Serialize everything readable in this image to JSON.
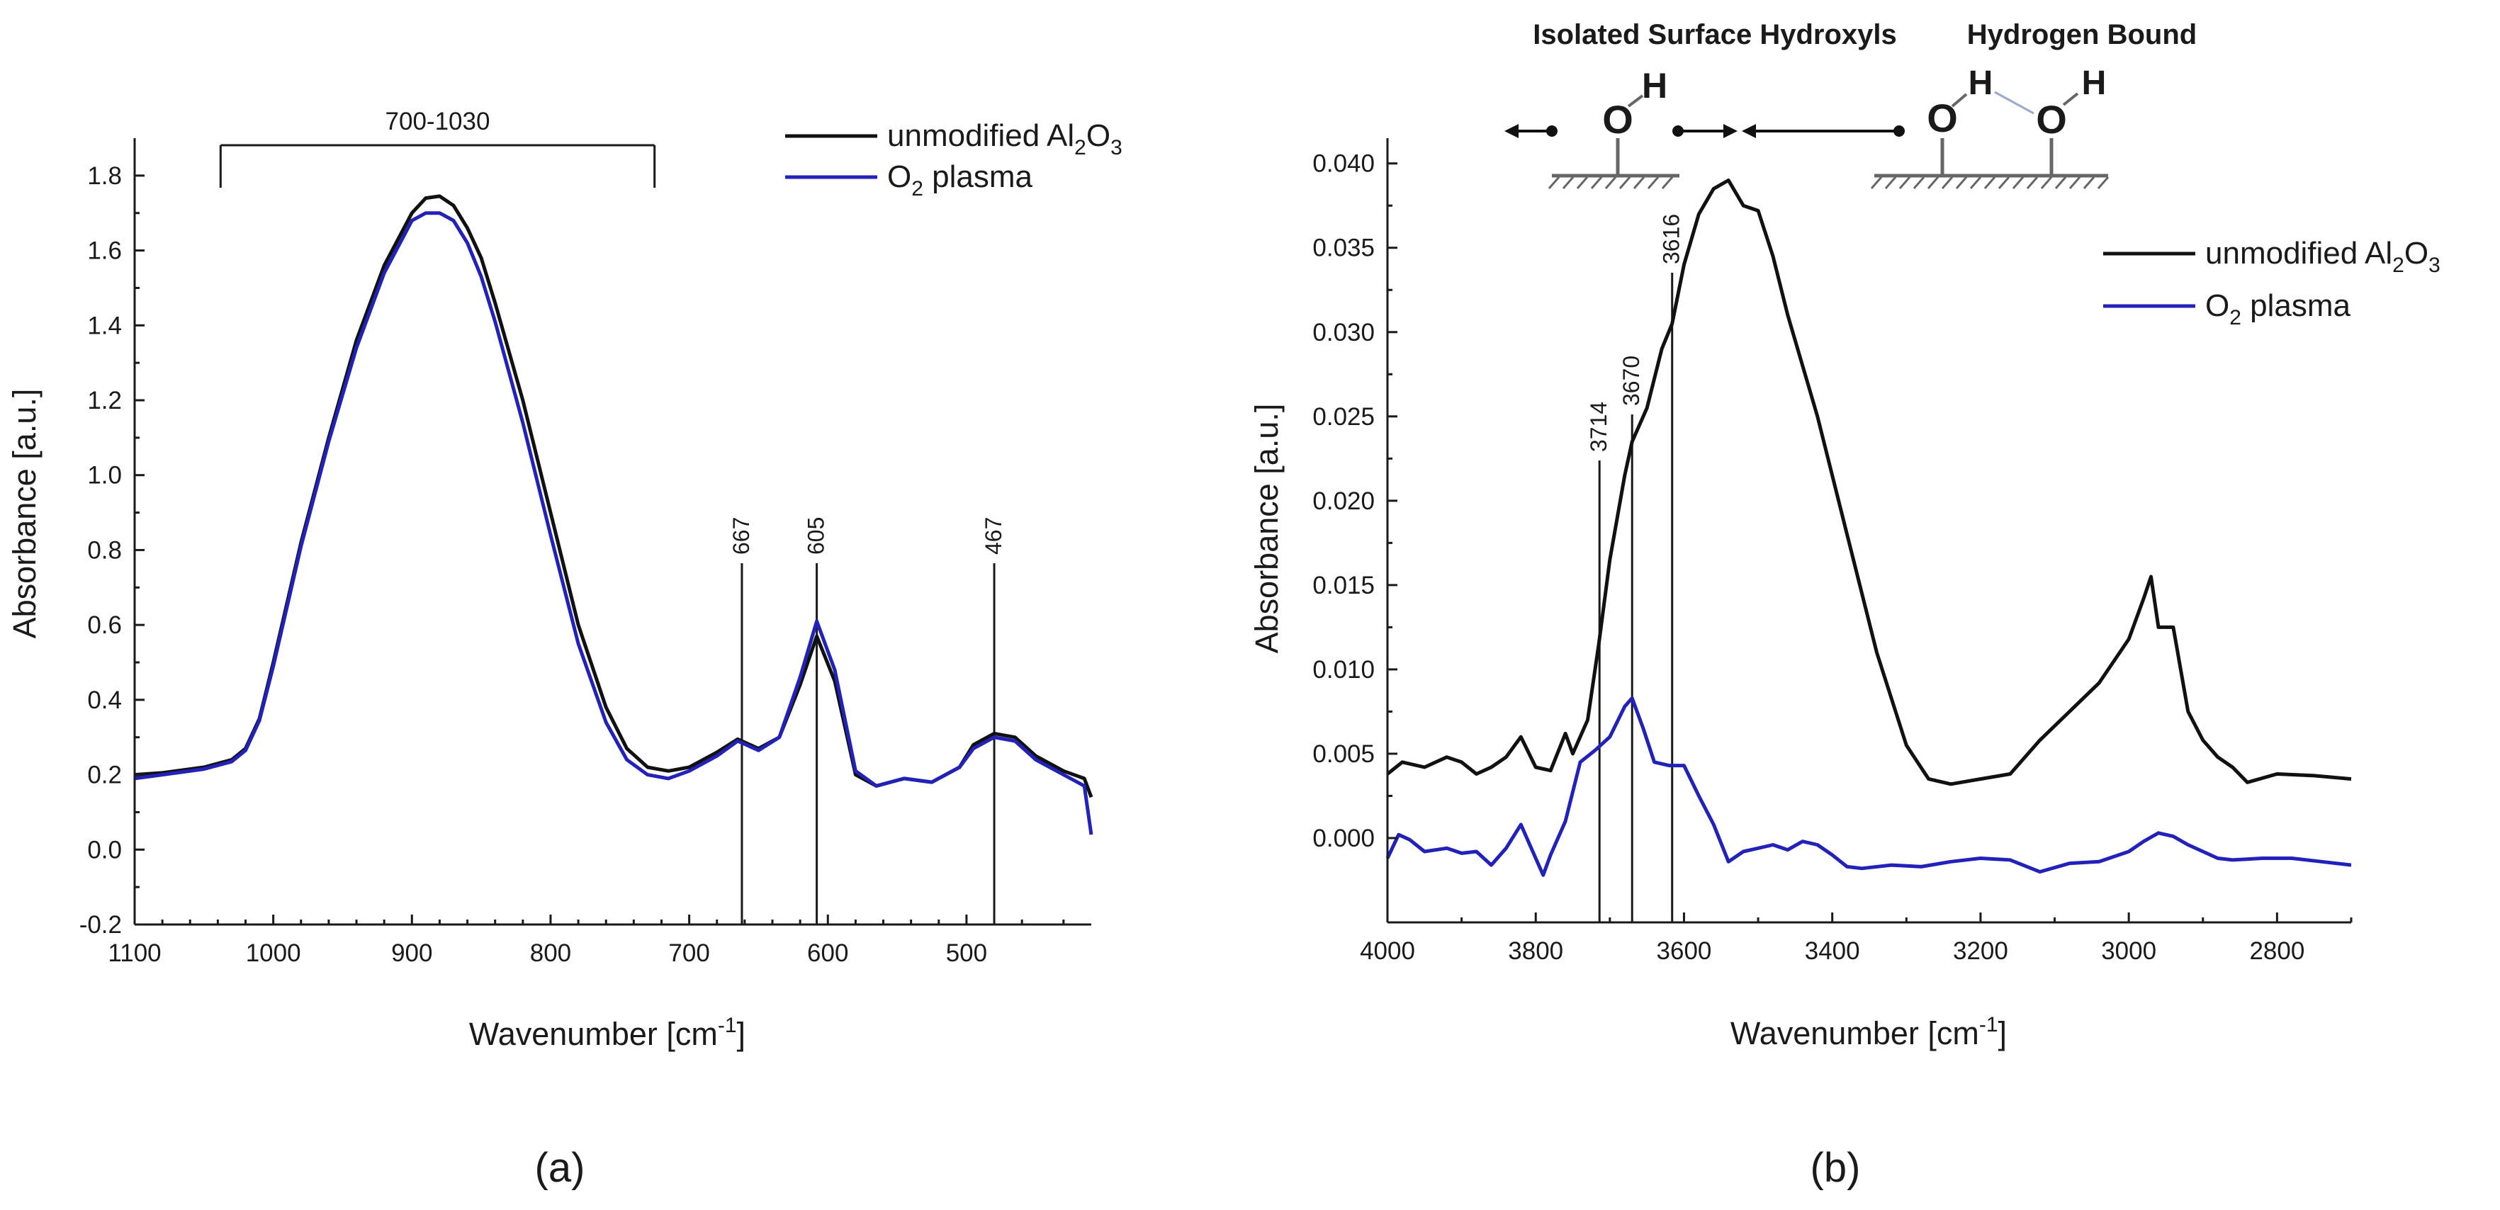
{
  "chart_data": [
    {
      "type": "line",
      "panel": "(a)",
      "xlabel": "Wavenumber [cm",
      "xlabel_sup": "-1",
      "xlabel_end": "]",
      "ylabel": "Absorbance [a.u.]",
      "xlim": [
        1100,
        410
      ],
      "ylim": [
        -0.2,
        1.9
      ],
      "x_ticks": [
        1100,
        1000,
        900,
        800,
        700,
        600,
        500
      ],
      "y_ticks": [
        -0.2,
        0.0,
        0.2,
        0.4,
        0.6,
        0.8,
        1.0,
        1.2,
        1.4,
        1.6,
        1.8
      ],
      "x_tick_labels": [
        "1100",
        "1000",
        "900",
        "800",
        "700",
        "600",
        "500"
      ],
      "y_tick_labels": [
        "-0.2",
        "0.0",
        "0.2",
        "0.4",
        "0.6",
        "0.8",
        "1.0",
        "1.2",
        "1.4",
        "1.6",
        "1.8"
      ],
      "bracket": {
        "label": "700-1030",
        "from": 1038,
        "to": 725
      },
      "peaks": [
        {
          "x": 662,
          "label": "667"
        },
        {
          "x": 608,
          "label": "605"
        },
        {
          "x": 480,
          "label": "467"
        }
      ],
      "series": [
        {
          "name": "unmodified Al",
          "legend_sub": "2",
          "legend_mid": "O",
          "legend_sub2": "3",
          "color": "#111111",
          "x": [
            1100,
            1080,
            1050,
            1030,
            1020,
            1010,
            1000,
            980,
            960,
            940,
            920,
            900,
            890,
            880,
            870,
            860,
            850,
            840,
            820,
            800,
            780,
            760,
            745,
            730,
            715,
            700,
            680,
            665,
            650,
            635,
            620,
            608,
            595,
            580,
            565,
            545,
            525,
            505,
            495,
            480,
            465,
            450,
            430,
            415,
            410
          ],
          "y": [
            0.2,
            0.205,
            0.22,
            0.24,
            0.27,
            0.35,
            0.5,
            0.82,
            1.1,
            1.36,
            1.56,
            1.7,
            1.74,
            1.745,
            1.72,
            1.66,
            1.58,
            1.46,
            1.2,
            0.9,
            0.6,
            0.38,
            0.27,
            0.22,
            0.21,
            0.22,
            0.26,
            0.295,
            0.27,
            0.3,
            0.44,
            0.57,
            0.45,
            0.2,
            0.17,
            0.19,
            0.18,
            0.22,
            0.28,
            0.31,
            0.3,
            0.25,
            0.21,
            0.19,
            0.14
          ]
        },
        {
          "name": "O",
          "legend_sub": "2",
          "legend_tail": " plasma",
          "color": "#2222bb",
          "x": [
            1100,
            1080,
            1050,
            1030,
            1020,
            1010,
            1000,
            980,
            960,
            940,
            920,
            900,
            890,
            880,
            870,
            860,
            850,
            840,
            820,
            800,
            780,
            760,
            745,
            730,
            715,
            700,
            680,
            665,
            650,
            635,
            620,
            608,
            595,
            580,
            565,
            545,
            525,
            505,
            495,
            480,
            465,
            450,
            430,
            415,
            410
          ],
          "y": [
            0.19,
            0.2,
            0.215,
            0.235,
            0.265,
            0.345,
            0.49,
            0.81,
            1.09,
            1.34,
            1.54,
            1.68,
            1.7,
            1.7,
            1.68,
            1.62,
            1.53,
            1.41,
            1.14,
            0.84,
            0.55,
            0.34,
            0.24,
            0.2,
            0.19,
            0.21,
            0.25,
            0.29,
            0.265,
            0.3,
            0.46,
            0.61,
            0.48,
            0.21,
            0.17,
            0.19,
            0.18,
            0.22,
            0.27,
            0.3,
            0.29,
            0.24,
            0.2,
            0.17,
            0.04
          ]
        }
      ]
    },
    {
      "type": "line",
      "panel": "(b)",
      "xlabel": "Wavenumber [cm",
      "xlabel_sup": "-1",
      "xlabel_end": "]",
      "ylabel": "Absorbance [a.u.]",
      "xlim": [
        4000,
        2700
      ],
      "ylim": [
        -0.005,
        0.0415
      ],
      "x_ticks": [
        4000,
        3800,
        3600,
        3400,
        3200,
        3000,
        2800
      ],
      "y_ticks": [
        0.0,
        0.005,
        0.01,
        0.015,
        0.02,
        0.025,
        0.03,
        0.035,
        0.04
      ],
      "x_tick_labels": [
        "4000",
        "3800",
        "3600",
        "3400",
        "3200",
        "3000",
        "2800"
      ],
      "y_tick_labels": [
        "0.000",
        "0.005",
        "0.010",
        "0.015",
        "0.020",
        "0.025",
        "0.030",
        "0.035",
        "0.040"
      ],
      "peaks": [
        {
          "x": 3714,
          "label": "3714"
        },
        {
          "x": 3670,
          "label": "3670"
        },
        {
          "x": 3616,
          "label": "3616"
        }
      ],
      "diagram": {
        "isolated_label": "Isolated Surface Hydroxyls",
        "bound_label": "Hydrogen Bound",
        "atom_o": "O",
        "atom_h": "H"
      },
      "series": [
        {
          "name": "unmodified Al",
          "legend_sub": "2",
          "legend_mid": "O",
          "legend_sub2": "3",
          "color": "#111111",
          "x": [
            4000,
            3980,
            3950,
            3920,
            3900,
            3880,
            3860,
            3840,
            3820,
            3800,
            3780,
            3760,
            3750,
            3730,
            3715,
            3700,
            3680,
            3670,
            3650,
            3630,
            3616,
            3600,
            3580,
            3560,
            3540,
            3520,
            3500,
            3480,
            3460,
            3420,
            3380,
            3340,
            3300,
            3270,
            3240,
            3200,
            3160,
            3120,
            3080,
            3040,
            3000,
            2980,
            2970,
            2960,
            2940,
            2920,
            2900,
            2880,
            2860,
            2840,
            2800,
            2750,
            2700
          ],
          "y": [
            0.0038,
            0.0045,
            0.0042,
            0.0048,
            0.0045,
            0.0038,
            0.0042,
            0.0048,
            0.006,
            0.0042,
            0.004,
            0.0062,
            0.005,
            0.007,
            0.0115,
            0.0165,
            0.0215,
            0.0235,
            0.0255,
            0.029,
            0.0305,
            0.034,
            0.037,
            0.0385,
            0.039,
            0.0375,
            0.0372,
            0.0345,
            0.031,
            0.025,
            0.018,
            0.011,
            0.0055,
            0.0035,
            0.0032,
            0.0035,
            0.0038,
            0.0058,
            0.0075,
            0.0092,
            0.0118,
            0.0142,
            0.0155,
            0.0125,
            0.0125,
            0.0075,
            0.0058,
            0.0048,
            0.0042,
            0.0033,
            0.0038,
            0.0037,
            0.0035
          ]
        },
        {
          "name": "O",
          "legend_sub": "2",
          "legend_tail": " plasma",
          "color": "#2222bb",
          "x": [
            4000,
            3985,
            3970,
            3950,
            3920,
            3900,
            3880,
            3860,
            3840,
            3820,
            3800,
            3790,
            3780,
            3760,
            3740,
            3720,
            3700,
            3680,
            3670,
            3655,
            3640,
            3620,
            3600,
            3580,
            3560,
            3540,
            3520,
            3500,
            3480,
            3460,
            3440,
            3420,
            3400,
            3380,
            3360,
            3320,
            3280,
            3240,
            3200,
            3160,
            3120,
            3080,
            3040,
            3000,
            2980,
            2960,
            2940,
            2920,
            2900,
            2880,
            2860,
            2820,
            2780,
            2740,
            2700
          ],
          "y": [
            -0.0012,
            0.0002,
            -0.0001,
            -0.0008,
            -0.0006,
            -0.0009,
            -0.0008,
            -0.0016,
            -0.0006,
            0.0008,
            -0.0012,
            -0.0022,
            -0.001,
            0.001,
            0.0045,
            0.0052,
            0.006,
            0.0078,
            0.0083,
            0.0065,
            0.0045,
            0.0043,
            0.0043,
            0.0025,
            0.0008,
            -0.0014,
            -0.0008,
            -0.0006,
            -0.0004,
            -0.0007,
            -0.0002,
            -0.0004,
            -0.001,
            -0.0017,
            -0.0018,
            -0.0016,
            -0.0017,
            -0.0014,
            -0.0012,
            -0.0013,
            -0.002,
            -0.0015,
            -0.0014,
            -0.0008,
            -0.0002,
            0.0003,
            0.0001,
            -0.0004,
            -0.0008,
            -0.0012,
            -0.0013,
            -0.0012,
            -0.0012,
            -0.0014,
            -0.0016
          ]
        }
      ]
    }
  ]
}
